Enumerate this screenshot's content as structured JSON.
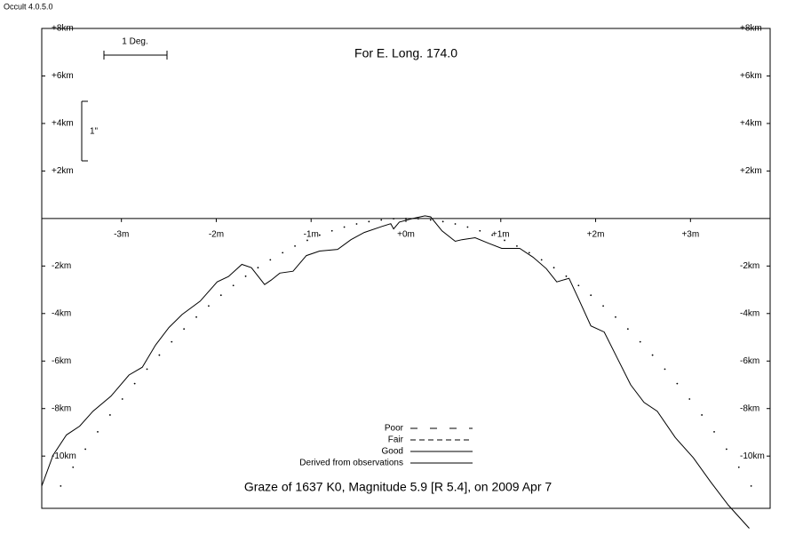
{
  "app_title": "Occult 4.0.5.0",
  "chart_data": {
    "type": "line",
    "title": "For E. Long. 174.0",
    "subtitle": "Graze of  1637 K0,  Magnitude 5.9 [R 5.4],  on 2009 Apr  7",
    "scale_bars": {
      "horizontal": "1 Deg.",
      "vertical": "1\""
    },
    "xlim": [
      -3.84,
      3.84
    ],
    "ylim": [
      -12.2,
      8
    ],
    "xticks": [
      {
        "value": -3,
        "label": "-3m"
      },
      {
        "value": -2,
        "label": "-2m"
      },
      {
        "value": -1,
        "label": "-1m"
      },
      {
        "value": 0,
        "label": "+0m"
      },
      {
        "value": 1,
        "label": "+1m"
      },
      {
        "value": 2,
        "label": "+2m"
      },
      {
        "value": 3,
        "label": "+3m"
      }
    ],
    "yticks": [
      {
        "value": 8,
        "label": "+8km"
      },
      {
        "value": 6,
        "label": "+6km"
      },
      {
        "value": 4,
        "label": "+4km"
      },
      {
        "value": 2,
        "label": "+2km"
      },
      {
        "value": -2,
        "label": "-2km"
      },
      {
        "value": -4,
        "label": "-4km"
      },
      {
        "value": -6,
        "label": "-6km"
      },
      {
        "value": -8,
        "label": "-8km"
      },
      {
        "value": -10,
        "label": "-10km"
      }
    ],
    "legend": [
      {
        "label": "Poor",
        "dash": "8 14"
      },
      {
        "label": "Fair",
        "dash": "6 4"
      },
      {
        "label": "Good",
        "dash": "none"
      },
      {
        "label": "Derived from observations",
        "dash": "none"
      }
    ],
    "series": [
      {
        "style": "dotted",
        "color": "#000000",
        "x": [
          -3.64,
          -3.51,
          -3.38,
          -3.25,
          -3.12,
          -2.99,
          -2.86,
          -2.73,
          -2.6,
          -2.47,
          -2.34,
          -2.21,
          -2.08,
          -1.95,
          -1.82,
          -1.69,
          -1.56,
          -1.43,
          -1.3,
          -1.17,
          -1.04,
          -0.91,
          -0.78,
          -0.65,
          -0.52,
          -0.39,
          -0.26,
          -0.13,
          0,
          0.13,
          0.26,
          0.39,
          0.52,
          0.65,
          0.78,
          0.91,
          1.04,
          1.17,
          1.3,
          1.43,
          1.56,
          1.69,
          1.82,
          1.95,
          2.08,
          2.21,
          2.34,
          2.47,
          2.6,
          2.73,
          2.86,
          2.99,
          3.12,
          3.25,
          3.38,
          3.51,
          3.64
        ],
        "values": [
          -11.26,
          -10.47,
          -9.71,
          -8.98,
          -8.27,
          -7.6,
          -6.95,
          -6.34,
          -5.75,
          -5.19,
          -4.65,
          -4.15,
          -3.68,
          -3.23,
          -2.82,
          -2.43,
          -2.07,
          -1.74,
          -1.44,
          -1.16,
          -0.92,
          -0.7,
          -0.52,
          -0.36,
          -0.23,
          -0.13,
          -0.06,
          -0.01,
          0,
          -0.01,
          -0.06,
          -0.13,
          -0.23,
          -0.36,
          -0.52,
          -0.7,
          -0.92,
          -1.16,
          -1.44,
          -1.74,
          -2.07,
          -2.43,
          -2.82,
          -3.23,
          -3.68,
          -4.15,
          -4.65,
          -5.19,
          -5.75,
          -6.34,
          -6.95,
          -7.6,
          -8.27,
          -8.98,
          -9.71,
          -10.47,
          -11.26
        ]
      },
      {
        "style": "solid",
        "color": "#000000",
        "x": [
          -3.84,
          -3.72,
          -3.58,
          -3.44,
          -3.3,
          -3.11,
          -2.92,
          -2.78,
          -2.64,
          -2.5,
          -2.36,
          -2.17,
          -1.99,
          -1.87,
          -1.73,
          -1.63,
          -1.49,
          -1.42,
          -1.33,
          -1.19,
          -1.05,
          -0.91,
          -0.72,
          -0.58,
          -0.44,
          -0.25,
          -0.16,
          -0.13,
          -0.07,
          0.07,
          0.2,
          0.26,
          0.38,
          0.52,
          0.59,
          0.73,
          0.87,
          1.01,
          1.2,
          1.34,
          1.48,
          1.59,
          1.72,
          1.81,
          1.95,
          2.09,
          2.23,
          2.37,
          2.51,
          2.65,
          2.84,
          3.03,
          3.21,
          3.4,
          3.62
        ],
        "values": [
          -11.26,
          -9.96,
          -9.11,
          -8.74,
          -8.11,
          -7.48,
          -6.59,
          -6.26,
          -5.33,
          -4.59,
          -4.04,
          -3.48,
          -2.67,
          -2.44,
          -1.93,
          -2.07,
          -2.78,
          -2.59,
          -2.3,
          -2.22,
          -1.56,
          -1.37,
          -1.3,
          -0.89,
          -0.59,
          -0.33,
          -0.22,
          -0.44,
          -0.15,
          0,
          0.11,
          0.07,
          -0.52,
          -0.96,
          -0.89,
          -0.81,
          -1.04,
          -1.26,
          -1.26,
          -1.63,
          -2.11,
          -2.67,
          -2.52,
          -3.3,
          -4.52,
          -4.78,
          -5.89,
          -7,
          -7.74,
          -8.11,
          -9.22,
          -10.07,
          -11.07,
          -12.07,
          -13.04
        ]
      }
    ]
  }
}
